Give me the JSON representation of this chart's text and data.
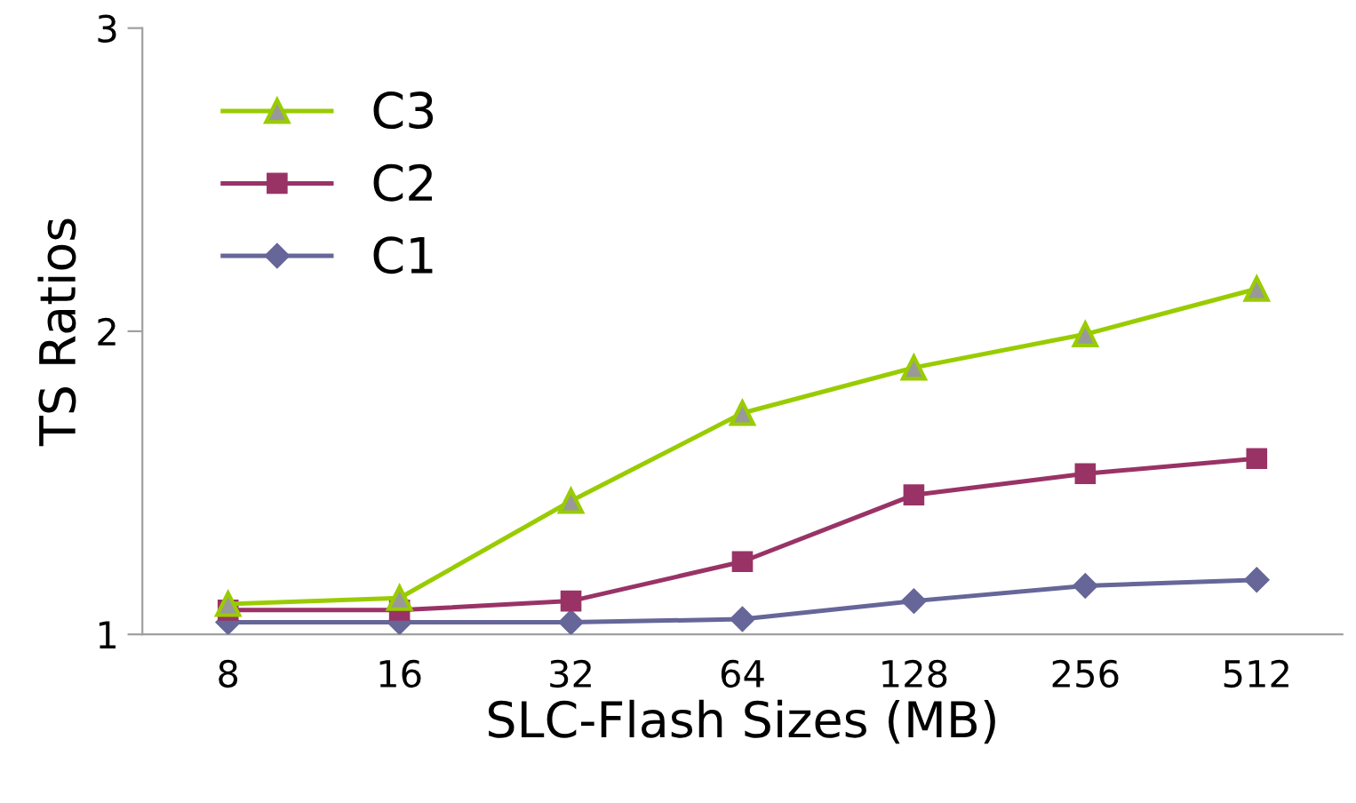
{
  "chart_data": {
    "type": "line",
    "xlabel": "SLC-Flash Sizes (MB)",
    "ylabel": "TS Ratios",
    "categories": [
      "8",
      "16",
      "32",
      "64",
      "128",
      "256",
      "512"
    ],
    "series": [
      {
        "name": "C3",
        "color": "#99cc00",
        "marker": "triangle",
        "values": [
          1.1,
          1.12,
          1.44,
          1.73,
          1.88,
          1.99,
          2.14
        ]
      },
      {
        "name": "C2",
        "color": "#993366",
        "marker": "square",
        "values": [
          1.08,
          1.08,
          1.11,
          1.24,
          1.46,
          1.53,
          1.58
        ]
      },
      {
        "name": "C1",
        "color": "#666699",
        "marker": "diamond",
        "values": [
          1.04,
          1.04,
          1.04,
          1.05,
          1.11,
          1.16,
          1.18
        ]
      }
    ],
    "ylim": [
      1,
      3
    ],
    "yticks": [
      1,
      2,
      3
    ],
    "grid": false,
    "legend": "top left"
  }
}
